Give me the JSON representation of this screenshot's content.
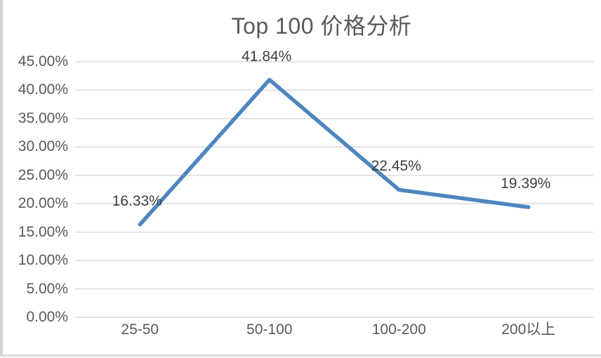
{
  "chart_data": {
    "type": "line",
    "title": "Top 100 价格分析",
    "categories": [
      "25-50",
      "50-100",
      "100-200",
      "200以上"
    ],
    "series": [
      {
        "name": "Top 100 价格分析",
        "values": [
          16.33,
          41.84,
          22.45,
          19.39
        ]
      }
    ],
    "data_labels": [
      "16.33%",
      "41.84%",
      "22.45%",
      "19.39%"
    ],
    "y_ticks": [
      "0.00%",
      "5.00%",
      "10.00%",
      "15.00%",
      "20.00%",
      "25.00%",
      "30.00%",
      "35.00%",
      "40.00%",
      "45.00%"
    ],
    "ylim": [
      0,
      45
    ],
    "y_step": 5,
    "xlabel": "",
    "ylabel": "",
    "grid": true,
    "legend_position": "none",
    "colors": {
      "line": "#4e86be",
      "gridline": "#d9d9d9",
      "axis_label": "#595959",
      "data_label": "#3f3f3f",
      "title": "#595959",
      "background": "#ffffff"
    }
  }
}
